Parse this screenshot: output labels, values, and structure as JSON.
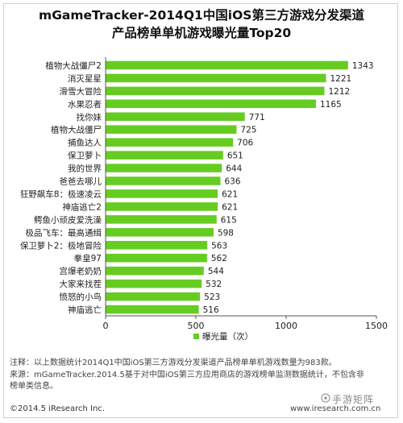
{
  "title_line1": "mGameTracker-2014Q1中国iOS第三方游戏分发渠道",
  "title_line2": "产品榜单单机游戏曝光量Top20",
  "chart_data": {
    "type": "bar",
    "orientation": "horizontal",
    "categories": [
      "植物大战僵尸2",
      "消灭星星",
      "滑雪大冒险",
      "水果忍者",
      "找你妹",
      "植物大战僵尸",
      "捕鱼达人",
      "保卫萝卜",
      "我的世界",
      "爸爸去哪儿",
      "狂野飙车8：极速凌云",
      "神庙逃亡2",
      "鳄鱼小顽皮爱洗澡",
      "极品飞车：最高通缉",
      "保卫萝卜2：极地冒险",
      "拳皇97",
      "宫爆老奶奶",
      "大家来找茬",
      "愤怒的小鸟",
      "神庙逃亡"
    ],
    "series": [
      {
        "name": "曝光量（次）",
        "values": [
          1343,
          1221,
          1212,
          1165,
          771,
          725,
          706,
          651,
          644,
          636,
          621,
          621,
          615,
          598,
          563,
          562,
          544,
          532,
          523,
          516
        ]
      }
    ],
    "xlim": [
      0,
      1500
    ],
    "xticks": [
      0,
      500,
      1000,
      1500
    ],
    "bar_color": "#66cc22",
    "grid": false,
    "legend_position": "bottom"
  },
  "footnote_line1": "注释：以上数据统计2014Q1中国iOS第三方游戏分发渠道产品榜单单机游戏数量为983款。",
  "footnote_line2": "来源：mGameTracker.2014.5基于对中国iOS第三方应用商店的游戏榜单监测数据统计，不包含非",
  "footnote_line3": "榜单类信息。",
  "copyright": "©2014.5 iResearch Inc.",
  "website": "www.iresearch.com.cn",
  "watermark": "手游矩阵"
}
